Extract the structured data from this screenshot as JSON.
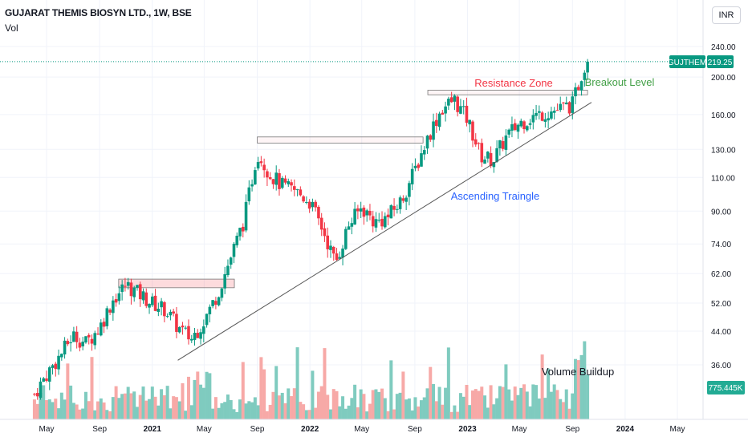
{
  "header": {
    "title": "GUJARAT THEMIS BIOSYN LTD., 1W, BSE",
    "volume_label": "Vol",
    "currency_button": "INR"
  },
  "price_tag": {
    "symbol": "GUJTHEM",
    "value": "219.25",
    "color": "#089981"
  },
  "volume_tag": {
    "value": "775.445K",
    "color": "#22ab94"
  },
  "annotations": {
    "resistance": "Resistance Zone",
    "breakout": "Breakout Level",
    "triangle": "Ascending Traingle",
    "volume": "Volume Buildup"
  },
  "colors": {
    "up": "#089981",
    "down": "#f23645",
    "vol_up": "#7fcbbf",
    "vol_down": "#f7a9a7",
    "resistance_text": "#f23645",
    "breakout_text": "#43a047",
    "triangle_text": "#2962ff"
  },
  "chart_data": {
    "type": "candlestick",
    "title": "GUJARAT THEMIS BIOSYN LTD., 1W, BSE",
    "y_scale": "log",
    "y_ticks": [
      "240.00",
      "200.00",
      "160.00",
      "130.00",
      "110.00",
      "90.00",
      "74.00",
      "62.00",
      "52.00",
      "44.00",
      "36.00"
    ],
    "x_ticks": [
      "May",
      "Sep",
      "2021",
      "May",
      "Sep",
      "2022",
      "May",
      "Sep",
      "2023",
      "May",
      "Sep",
      "2024",
      "May"
    ],
    "last_price": 219.25,
    "last_volume": "775.445K",
    "weekly_close_path": [
      [
        "2020-04",
        30
      ],
      [
        "2020-05",
        34
      ],
      [
        "2020-06",
        38
      ],
      [
        "2020-07",
        43
      ],
      [
        "2020-08",
        41
      ],
      [
        "2020-09",
        45
      ],
      [
        "2020-10",
        53
      ],
      [
        "2020-11",
        58
      ],
      [
        "2020-12",
        55
      ],
      [
        "2021-01",
        52
      ],
      [
        "2021-02",
        50
      ],
      [
        "2021-03",
        45
      ],
      [
        "2021-04",
        42
      ],
      [
        "2021-05",
        47
      ],
      [
        "2021-06",
        55
      ],
      [
        "2021-07",
        68
      ],
      [
        "2021-08",
        85
      ],
      [
        "2021-09",
        128
      ],
      [
        "2021-10",
        112
      ],
      [
        "2021-11",
        104
      ],
      [
        "2021-12",
        101
      ],
      [
        "2022-01",
        95
      ],
      [
        "2022-02",
        80
      ],
      [
        "2022-03",
        66
      ],
      [
        "2022-04",
        83
      ],
      [
        "2022-05",
        92
      ],
      [
        "2022-06",
        84
      ],
      [
        "2022-07",
        87
      ],
      [
        "2022-08",
        96
      ],
      [
        "2022-09",
        115
      ],
      [
        "2022-10",
        140
      ],
      [
        "2022-11",
        165
      ],
      [
        "2022-12",
        175
      ],
      [
        "2023-01",
        155
      ],
      [
        "2023-02",
        125
      ],
      [
        "2023-03",
        122
      ],
      [
        "2023-04",
        140
      ],
      [
        "2023-05",
        152
      ],
      [
        "2023-06",
        158
      ],
      [
        "2023-07",
        162
      ],
      [
        "2023-08",
        165
      ],
      [
        "2023-09",
        170
      ],
      [
        "2023-10",
        219.25
      ]
    ],
    "resistance_levels": [
      {
        "label": "",
        "price_low": 57,
        "price_high": 60
      },
      {
        "label": "",
        "price_low": 135,
        "price_high": 140
      },
      {
        "label": "Resistance Zone",
        "price_low": 180,
        "price_high": 185
      }
    ],
    "trendline": {
      "label": "Ascending Traingle",
      "from": [
        "2021-03",
        37
      ],
      "to": [
        "2023-10",
        172
      ]
    }
  }
}
